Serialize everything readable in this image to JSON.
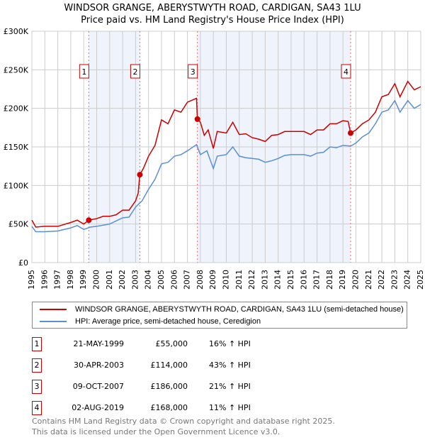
{
  "chart_data": {
    "type": "line",
    "title": "WINDSOR GRANGE, ABERYSTWYTH ROAD, CARDIGAN, SA43 1LU",
    "subtitle": "Price paid vs. HM Land Registry's House Price Index (HPI)",
    "xlim": [
      1995,
      2025
    ],
    "ylim": [
      0,
      300000
    ],
    "x_ticks": [
      "1995",
      "1996",
      "1997",
      "1998",
      "1999",
      "2000",
      "2001",
      "2002",
      "2003",
      "2004",
      "2005",
      "2006",
      "2007",
      "2008",
      "2009",
      "2010",
      "2011",
      "2012",
      "2013",
      "2014",
      "2015",
      "2016",
      "2017",
      "2018",
      "2019",
      "2020",
      "2021",
      "2022",
      "2023",
      "2024",
      "2025"
    ],
    "y_ticks": [
      {
        "v": 0,
        "label": "£0"
      },
      {
        "v": 50000,
        "label": "£50K"
      },
      {
        "v": 100000,
        "label": "£100K"
      },
      {
        "v": 150000,
        "label": "£150K"
      },
      {
        "v": 200000,
        "label": "£200K"
      },
      {
        "v": 250000,
        "label": "£250K"
      },
      {
        "v": 300000,
        "label": "£300K"
      }
    ],
    "grid": true,
    "series": [
      {
        "name": "WINDSOR GRANGE, ABERYSTWYTH ROAD, CARDIGAN, SA43 1LU (semi-detached house)",
        "color": "#cc0000",
        "points": [
          [
            1995,
            55
          ],
          [
            1995.3,
            46
          ],
          [
            1996,
            47
          ],
          [
            1997,
            47
          ],
          [
            1998,
            52
          ],
          [
            1998.5,
            55
          ],
          [
            1999,
            50
          ],
          [
            1999.39,
            55
          ],
          [
            2000,
            57
          ],
          [
            2000.5,
            60
          ],
          [
            2001,
            60
          ],
          [
            2001.5,
            62
          ],
          [
            2002,
            68
          ],
          [
            2002.5,
            68
          ],
          [
            2003,
            80
          ],
          [
            2003.2,
            90
          ],
          [
            2003.33,
            114
          ],
          [
            2003.6,
            122
          ],
          [
            2004,
            138
          ],
          [
            2004.5,
            152
          ],
          [
            2005,
            185
          ],
          [
            2005.5,
            180
          ],
          [
            2006,
            198
          ],
          [
            2006.5,
            195
          ],
          [
            2007,
            208
          ],
          [
            2007.7,
            213
          ],
          [
            2007.77,
            186
          ],
          [
            2008,
            182
          ],
          [
            2008.3,
            165
          ],
          [
            2008.6,
            172
          ],
          [
            2009,
            148
          ],
          [
            2009.3,
            170
          ],
          [
            2010,
            168
          ],
          [
            2010.5,
            182
          ],
          [
            2011,
            166
          ],
          [
            2011.5,
            167
          ],
          [
            2012,
            162
          ],
          [
            2012.5,
            160
          ],
          [
            2013,
            157
          ],
          [
            2013.5,
            165
          ],
          [
            2014,
            166
          ],
          [
            2014.5,
            170
          ],
          [
            2015,
            170
          ],
          [
            2016,
            170
          ],
          [
            2016.5,
            166
          ],
          [
            2017,
            172
          ],
          [
            2017.5,
            172
          ],
          [
            2018,
            180
          ],
          [
            2018.5,
            180
          ],
          [
            2019,
            184
          ],
          [
            2019.4,
            183
          ],
          [
            2019.59,
            168
          ],
          [
            2020,
            172
          ],
          [
            2020.5,
            180
          ],
          [
            2021,
            185
          ],
          [
            2021.5,
            195
          ],
          [
            2022,
            215
          ],
          [
            2022.5,
            218
          ],
          [
            2023,
            232
          ],
          [
            2023.4,
            215
          ],
          [
            2024,
            235
          ],
          [
            2024.5,
            224
          ],
          [
            2025,
            228
          ]
        ]
      },
      {
        "name": "HPI: Average price, semi-detached house, Ceredigion",
        "color": "#5b8fd4",
        "points": [
          [
            1995,
            47
          ],
          [
            1995.3,
            40
          ],
          [
            1996,
            40
          ],
          [
            1997,
            41
          ],
          [
            1998,
            45
          ],
          [
            1998.5,
            48
          ],
          [
            1999,
            43
          ],
          [
            1999.5,
            46
          ],
          [
            2000,
            47
          ],
          [
            2001,
            50
          ],
          [
            2002,
            58
          ],
          [
            2002.5,
            59
          ],
          [
            2003,
            72
          ],
          [
            2003.5,
            80
          ],
          [
            2004,
            95
          ],
          [
            2004.5,
            108
          ],
          [
            2005,
            128
          ],
          [
            2005.5,
            130
          ],
          [
            2006,
            138
          ],
          [
            2006.5,
            140
          ],
          [
            2007,
            145
          ],
          [
            2007.7,
            153
          ],
          [
            2008,
            140
          ],
          [
            2008.5,
            145
          ],
          [
            2009,
            122
          ],
          [
            2009.3,
            138
          ],
          [
            2010,
            140
          ],
          [
            2010.5,
            150
          ],
          [
            2011,
            138
          ],
          [
            2011.5,
            136
          ],
          [
            2012,
            135
          ],
          [
            2012.5,
            134
          ],
          [
            2013,
            130
          ],
          [
            2013.5,
            132
          ],
          [
            2014,
            135
          ],
          [
            2014.5,
            139
          ],
          [
            2015,
            140
          ],
          [
            2016,
            140
          ],
          [
            2016.5,
            138
          ],
          [
            2017,
            142
          ],
          [
            2017.5,
            143
          ],
          [
            2018,
            150
          ],
          [
            2018.5,
            149
          ],
          [
            2019,
            152
          ],
          [
            2019.59,
            151
          ],
          [
            2020,
            155
          ],
          [
            2020.5,
            163
          ],
          [
            2021,
            168
          ],
          [
            2021.5,
            180
          ],
          [
            2022,
            195
          ],
          [
            2022.5,
            198
          ],
          [
            2023,
            210
          ],
          [
            2023.4,
            195
          ],
          [
            2024,
            210
          ],
          [
            2024.5,
            200
          ],
          [
            2025,
            205
          ]
        ]
      }
    ],
    "value_unit": "£ thousands",
    "sales": [
      {
        "label": "1",
        "x": 1999.39,
        "price": 55,
        "date": "21-MAY-1999",
        "price_text": "£55,000",
        "hpi_text": "16% ↑ HPI"
      },
      {
        "label": "2",
        "x": 2003.33,
        "price": 114,
        "date": "30-APR-2003",
        "price_text": "£114,000",
        "hpi_text": "43% ↑ HPI"
      },
      {
        "label": "3",
        "x": 2007.77,
        "price": 186,
        "date": "09-OCT-2007",
        "price_text": "£186,000",
        "hpi_text": "21% ↑ HPI"
      },
      {
        "label": "4",
        "x": 2019.59,
        "price": 168,
        "date": "02-AUG-2019",
        "price_text": "£168,000",
        "hpi_text": "11% ↑ HPI"
      }
    ],
    "shaded_ranges": [
      [
        1999.39,
        2003.33
      ],
      [
        2007.77,
        2019.59
      ]
    ],
    "legend_position": "below"
  },
  "footer": {
    "line1": "Contains HM Land Registry data © Crown copyright and database right 2025.",
    "line2": "This data is licensed under the Open Government Licence v3.0."
  }
}
